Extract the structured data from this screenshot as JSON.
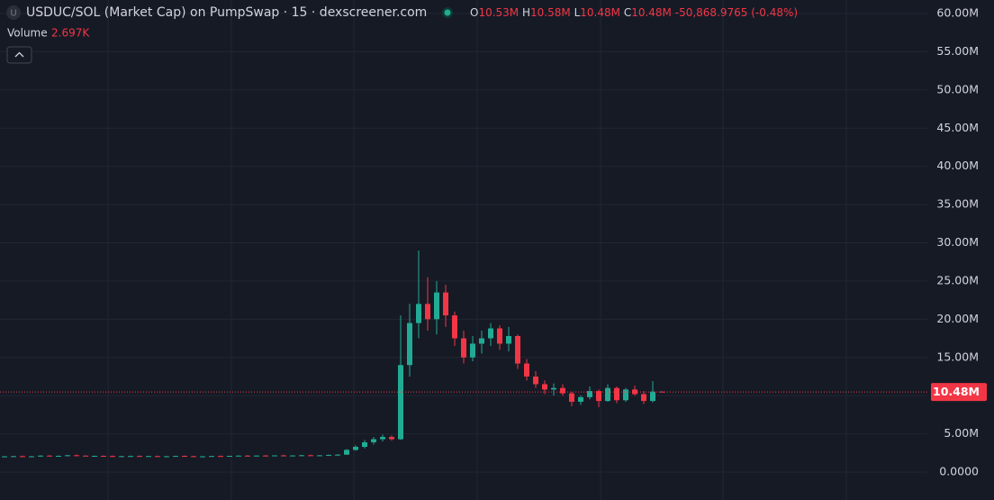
{
  "chart_data": {
    "type": "candlestick",
    "title": "USDUC/SOL (Market Cap) on PumpSwap · 15 · dexscreener.com",
    "ohlc_legend": {
      "open_label": "O",
      "open": "10.53M",
      "high_label": "H",
      "high": "10.58M",
      "low_label": "L",
      "low": "10.48M",
      "close_label": "C",
      "close": "10.48M",
      "change": "-50,868.9765 (-0.48%)"
    },
    "volume_label": "Volume",
    "volume": "2.697K",
    "symbol_icon": "U",
    "up_color": "#22ab94",
    "down_color": "#f23645",
    "grid": true,
    "ylim": [
      0,
      60
    ],
    "yticks": [
      {
        "value": 0,
        "label": "0.0000"
      },
      {
        "value": 5,
        "label": "5.00M"
      },
      {
        "value": 10,
        "label": "10.00M"
      },
      {
        "value": 15,
        "label": "15.00M"
      },
      {
        "value": 20,
        "label": "20.00M"
      },
      {
        "value": 25,
        "label": "25.00M"
      },
      {
        "value": 30,
        "label": "30.00M"
      },
      {
        "value": 35,
        "label": "35.00M"
      },
      {
        "value": 40,
        "label": "40.00M"
      },
      {
        "value": 45,
        "label": "45.00M"
      },
      {
        "value": 50,
        "label": "50.00M"
      },
      {
        "value": 55,
        "label": "55.00M"
      },
      {
        "value": 60,
        "label": "60.00M"
      }
    ],
    "last_price": {
      "value": 10.48,
      "label": "10.48M"
    },
    "open": [
      2.0,
      2.05,
      2.08,
      2.03,
      2.06,
      2.15,
      2.1,
      2.12,
      2.2,
      2.15,
      2.08,
      2.12,
      2.1,
      2.05,
      2.08,
      2.1,
      2.06,
      2.09,
      2.04,
      2.07,
      2.11,
      2.08,
      2.03,
      2.06,
      2.1,
      2.07,
      2.12,
      2.15,
      2.11,
      2.16,
      2.12,
      2.18,
      2.14,
      2.17,
      2.2,
      2.16,
      2.19,
      2.25,
      2.28,
      2.9,
      3.3,
      3.9,
      4.3,
      4.6,
      4.3,
      14.0,
      19.5,
      22.0,
      20.0,
      23.5,
      20.5,
      17.5,
      15.0,
      16.8,
      17.5,
      18.8,
      16.8,
      17.8,
      14.2,
      12.5,
      11.5,
      10.8,
      11.0,
      10.3,
      9.2,
      9.8,
      10.6,
      9.3,
      11.0,
      9.4,
      10.8,
      10.2,
      9.3,
      10.53
    ],
    "high": [
      2.1,
      2.12,
      2.15,
      2.1,
      2.2,
      2.22,
      2.18,
      2.25,
      2.28,
      2.2,
      2.15,
      2.18,
      2.16,
      2.12,
      2.15,
      2.18,
      2.12,
      2.15,
      2.1,
      2.14,
      2.18,
      2.13,
      2.1,
      2.12,
      2.16,
      2.13,
      2.2,
      2.22,
      2.18,
      2.24,
      2.19,
      2.26,
      2.2,
      2.25,
      2.28,
      2.22,
      2.3,
      2.35,
      3.0,
      3.5,
      4.2,
      4.6,
      4.9,
      4.8,
      20.5,
      22.0,
      29.0,
      25.5,
      25.0,
      24.5,
      21.0,
      18.5,
      17.8,
      18.5,
      19.5,
      19.2,
      19.0,
      18.0,
      14.8,
      13.2,
      12.0,
      11.6,
      11.5,
      10.5,
      10.0,
      11.2,
      10.8,
      11.5,
      11.2,
      11.0,
      11.3,
      10.6,
      11.9,
      10.58
    ],
    "low": [
      1.95,
      2.0,
      2.02,
      1.98,
      2.02,
      2.08,
      2.05,
      2.08,
      2.12,
      2.05,
      2.0,
      2.05,
      2.02,
      1.98,
      2.02,
      2.04,
      2.0,
      2.03,
      1.98,
      2.02,
      2.05,
      2.0,
      1.97,
      2.01,
      2.04,
      2.01,
      2.06,
      2.09,
      2.05,
      2.1,
      2.06,
      2.12,
      2.08,
      2.1,
      2.14,
      2.1,
      2.12,
      2.15,
      2.25,
      2.8,
      3.1,
      3.6,
      4.0,
      4.1,
      4.2,
      12.5,
      17.5,
      18.5,
      18.0,
      19.0,
      16.5,
      14.2,
      14.5,
      15.5,
      16.5,
      16.0,
      15.8,
      13.5,
      12.0,
      11.0,
      10.2,
      10.0,
      10.0,
      8.6,
      8.8,
      9.5,
      8.5,
      9.2,
      9.0,
      9.2,
      10.0,
      8.9,
      9.1,
      10.48
    ],
    "close": [
      2.05,
      2.08,
      2.03,
      2.06,
      2.15,
      2.1,
      2.12,
      2.2,
      2.15,
      2.08,
      2.12,
      2.1,
      2.05,
      2.08,
      2.1,
      2.06,
      2.09,
      2.04,
      2.07,
      2.11,
      2.08,
      2.03,
      2.06,
      2.1,
      2.07,
      2.12,
      2.15,
      2.11,
      2.16,
      2.12,
      2.18,
      2.14,
      2.17,
      2.2,
      2.16,
      2.19,
      2.25,
      2.28,
      2.9,
      3.3,
      3.9,
      4.3,
      4.6,
      4.3,
      14.0,
      19.5,
      22.0,
      20.0,
      23.5,
      20.5,
      17.5,
      15.0,
      16.8,
      17.5,
      18.8,
      16.8,
      17.8,
      14.2,
      12.5,
      11.5,
      10.8,
      11.0,
      10.3,
      9.2,
      9.8,
      10.6,
      9.3,
      11.0,
      9.4,
      10.8,
      10.2,
      9.3,
      10.53,
      10.48
    ]
  }
}
